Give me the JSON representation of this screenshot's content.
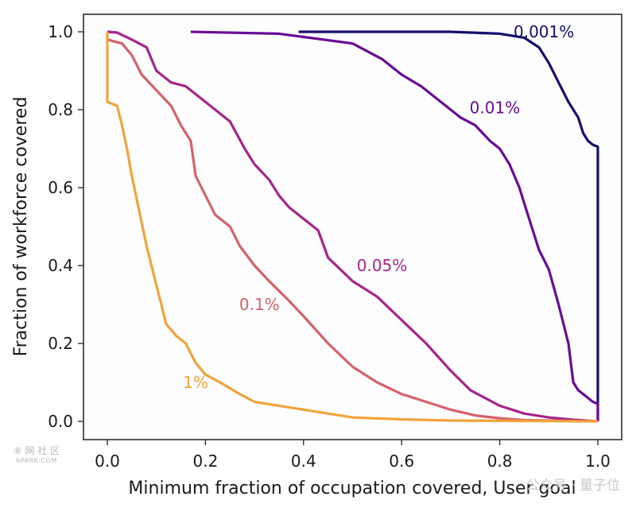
{
  "chart_data": {
    "type": "line",
    "xlabel": "Minimum fraction of occupation covered, User goal",
    "ylabel": "Fraction of workforce covered",
    "xlim": [
      0,
      1
    ],
    "ylim": [
      0,
      1
    ],
    "xticks": [
      "0.0",
      "0.2",
      "0.4",
      "0.6",
      "0.8",
      "1.0"
    ],
    "yticks": [
      "0.0",
      "0.2",
      "0.4",
      "0.6",
      "0.8",
      "1.0"
    ],
    "grid": false,
    "series": [
      {
        "name": "0.001%",
        "color": "#14106e",
        "label_at": [
          0.89,
          1.0
        ],
        "points": [
          [
            0.39,
            1.0
          ],
          [
            0.39,
            1.0
          ],
          [
            0.7,
            1.0
          ],
          [
            0.8,
            0.995
          ],
          [
            0.85,
            0.985
          ],
          [
            0.88,
            0.96
          ],
          [
            0.9,
            0.92
          ],
          [
            0.92,
            0.87
          ],
          [
            0.94,
            0.82
          ],
          [
            0.96,
            0.78
          ],
          [
            0.97,
            0.74
          ],
          [
            0.98,
            0.72
          ],
          [
            0.99,
            0.71
          ],
          [
            1.0,
            0.705
          ],
          [
            1.0,
            0.0
          ]
        ]
      },
      {
        "name": "0.01%",
        "color": "#6a0b96",
        "label_at": [
          0.79,
          0.805
        ],
        "points": [
          [
            0.17,
            1.0
          ],
          [
            0.35,
            0.995
          ],
          [
            0.5,
            0.97
          ],
          [
            0.56,
            0.93
          ],
          [
            0.6,
            0.89
          ],
          [
            0.64,
            0.86
          ],
          [
            0.68,
            0.82
          ],
          [
            0.72,
            0.78
          ],
          [
            0.75,
            0.76
          ],
          [
            0.78,
            0.72
          ],
          [
            0.8,
            0.7
          ],
          [
            0.82,
            0.66
          ],
          [
            0.84,
            0.6
          ],
          [
            0.85,
            0.56
          ],
          [
            0.87,
            0.48
          ],
          [
            0.88,
            0.44
          ],
          [
            0.9,
            0.39
          ],
          [
            0.92,
            0.3
          ],
          [
            0.93,
            0.25
          ],
          [
            0.94,
            0.2
          ],
          [
            0.95,
            0.1
          ],
          [
            0.96,
            0.08
          ],
          [
            0.98,
            0.06
          ],
          [
            0.99,
            0.05
          ],
          [
            1.0,
            0.045
          ],
          [
            1.0,
            0.0
          ]
        ]
      },
      {
        "name": "0.05%",
        "color": "#a8248a",
        "label_at": [
          0.56,
          0.4
        ],
        "points": [
          [
            0.0,
            1.0
          ],
          [
            0.02,
            0.998
          ],
          [
            0.05,
            0.98
          ],
          [
            0.08,
            0.96
          ],
          [
            0.1,
            0.9
          ],
          [
            0.13,
            0.87
          ],
          [
            0.16,
            0.86
          ],
          [
            0.2,
            0.82
          ],
          [
            0.25,
            0.77
          ],
          [
            0.28,
            0.7
          ],
          [
            0.3,
            0.66
          ],
          [
            0.33,
            0.62
          ],
          [
            0.35,
            0.58
          ],
          [
            0.37,
            0.55
          ],
          [
            0.4,
            0.52
          ],
          [
            0.43,
            0.49
          ],
          [
            0.45,
            0.42
          ],
          [
            0.5,
            0.36
          ],
          [
            0.55,
            0.32
          ],
          [
            0.6,
            0.26
          ],
          [
            0.65,
            0.2
          ],
          [
            0.7,
            0.13
          ],
          [
            0.74,
            0.08
          ],
          [
            0.8,
            0.04
          ],
          [
            0.85,
            0.02
          ],
          [
            0.9,
            0.01
          ],
          [
            0.95,
            0.004
          ],
          [
            1.0,
            0.0
          ]
        ]
      },
      {
        "name": "0.1%",
        "color": "#d8616a",
        "label_at": [
          0.31,
          0.3
        ],
        "points": [
          [
            0.0,
            0.98
          ],
          [
            0.03,
            0.97
          ],
          [
            0.05,
            0.94
          ],
          [
            0.07,
            0.89
          ],
          [
            0.1,
            0.85
          ],
          [
            0.13,
            0.81
          ],
          [
            0.15,
            0.76
          ],
          [
            0.17,
            0.72
          ],
          [
            0.18,
            0.63
          ],
          [
            0.2,
            0.58
          ],
          [
            0.22,
            0.53
          ],
          [
            0.25,
            0.5
          ],
          [
            0.27,
            0.45
          ],
          [
            0.3,
            0.4
          ],
          [
            0.33,
            0.36
          ],
          [
            0.37,
            0.31
          ],
          [
            0.4,
            0.27
          ],
          [
            0.45,
            0.2
          ],
          [
            0.5,
            0.14
          ],
          [
            0.55,
            0.1
          ],
          [
            0.6,
            0.07
          ],
          [
            0.65,
            0.05
          ],
          [
            0.7,
            0.03
          ],
          [
            0.75,
            0.015
          ],
          [
            0.8,
            0.008
          ],
          [
            0.85,
            0.003
          ],
          [
            1.0,
            0.0
          ]
        ]
      },
      {
        "name": "1%",
        "color": "#f2a33a",
        "label_at": [
          0.18,
          0.1
        ],
        "points": [
          [
            0.0,
            1.0
          ],
          [
            0.0,
            0.82
          ],
          [
            0.02,
            0.81
          ],
          [
            0.03,
            0.76
          ],
          [
            0.04,
            0.7
          ],
          [
            0.05,
            0.63
          ],
          [
            0.06,
            0.57
          ],
          [
            0.07,
            0.51
          ],
          [
            0.08,
            0.45
          ],
          [
            0.09,
            0.4
          ],
          [
            0.1,
            0.35
          ],
          [
            0.11,
            0.3
          ],
          [
            0.12,
            0.25
          ],
          [
            0.14,
            0.22
          ],
          [
            0.16,
            0.2
          ],
          [
            0.18,
            0.15
          ],
          [
            0.2,
            0.12
          ],
          [
            0.23,
            0.1
          ],
          [
            0.27,
            0.07
          ],
          [
            0.3,
            0.05
          ],
          [
            0.35,
            0.04
          ],
          [
            0.4,
            0.03
          ],
          [
            0.45,
            0.02
          ],
          [
            0.5,
            0.01
          ],
          [
            0.6,
            0.005
          ],
          [
            0.7,
            0.002
          ],
          [
            1.0,
            0.0
          ]
        ]
      }
    ]
  },
  "watermark": {
    "left_top": "⑧ 网 社 区",
    "left_bottom": "6PARK·COM",
    "right": "公众号 · 量子位"
  }
}
